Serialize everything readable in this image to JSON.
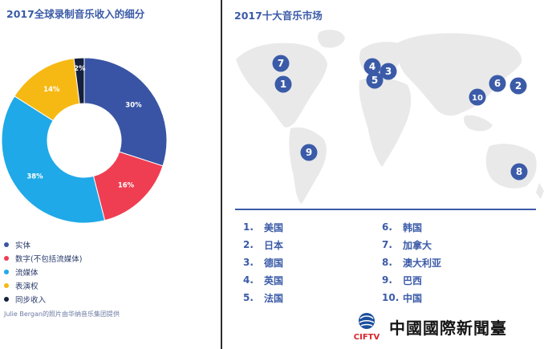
{
  "left_title": "2017全球录制音乐收入的细分",
  "right_title": "2017十大音乐市场",
  "credit": "Julie Bergan的照片由华纳音乐集团提供",
  "chart_data": {
    "type": "pie",
    "title": "2017全球录制音乐收入的细分",
    "slices": [
      {
        "label": "实体",
        "value": 30,
        "text": "30%",
        "color": "#3954a4"
      },
      {
        "label": "数字(不包括流媒体)",
        "value": 16,
        "text": "16%",
        "color": "#ef3e52"
      },
      {
        "label": "流媒体",
        "value": 38,
        "text": "38%",
        "color": "#1fa9e8"
      },
      {
        "label": "表演权",
        "value": 14,
        "text": "14%",
        "color": "#f6b914"
      },
      {
        "label": "同步收入",
        "value": 2,
        "text": "2%",
        "color": "#15203d"
      }
    ],
    "legend_position": "bottom-left"
  },
  "map": {
    "land_color": "#e9e9e9",
    "marker_color": "#3b5ba8",
    "markers": [
      "7",
      "1",
      "4",
      "3",
      "5",
      "6",
      "2",
      "10",
      "9",
      "8"
    ]
  },
  "rankings": {
    "left": [
      {
        "num": "1.",
        "country": "美国"
      },
      {
        "num": "2.",
        "country": "日本"
      },
      {
        "num": "3.",
        "country": "德国"
      },
      {
        "num": "4.",
        "country": "英国"
      },
      {
        "num": "5.",
        "country": "法国"
      }
    ],
    "right": [
      {
        "num": "6.",
        "country": "韩国"
      },
      {
        "num": "7.",
        "country": "加拿大"
      },
      {
        "num": "8.",
        "country": "澳大利亚"
      },
      {
        "num": "9.",
        "country": "巴西"
      },
      {
        "num": "10.",
        "country": "中国"
      }
    ]
  },
  "logo": {
    "brand": "CIFTV",
    "name": "中國國際新聞臺"
  }
}
